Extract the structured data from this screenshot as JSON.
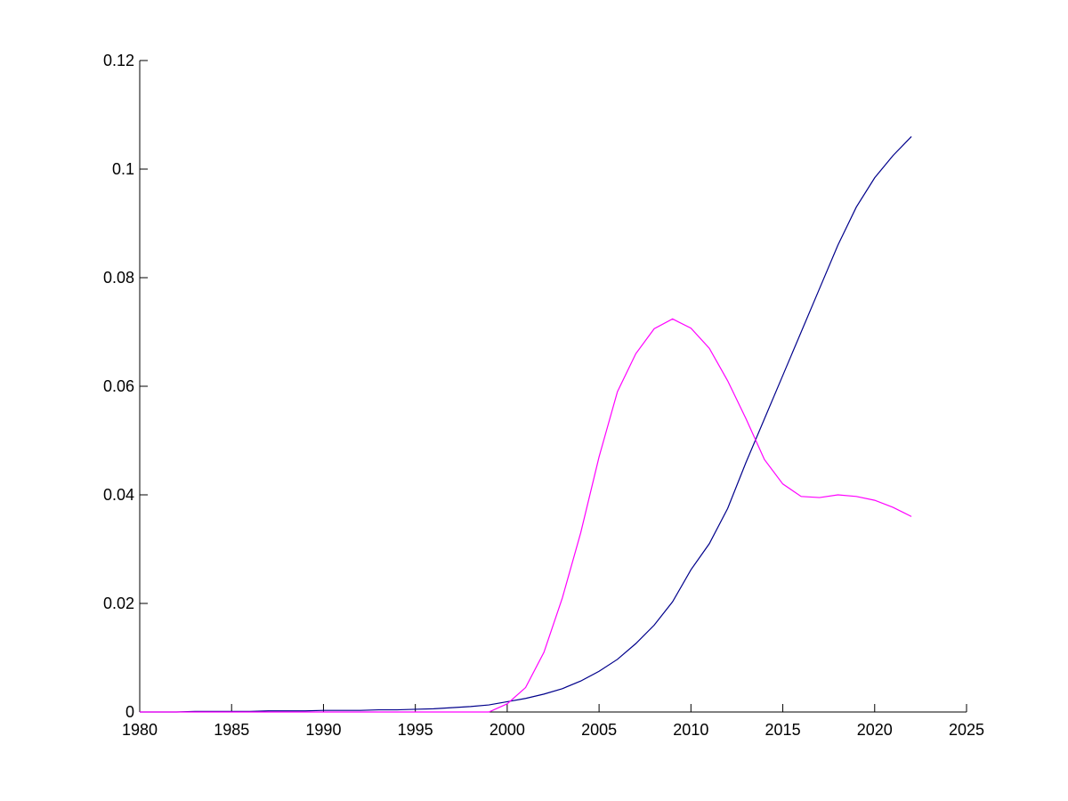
{
  "chart_data": {
    "type": "line",
    "x": [
      1980,
      1981,
      1982,
      1983,
      1984,
      1985,
      1986,
      1987,
      1988,
      1989,
      1990,
      1991,
      1992,
      1993,
      1994,
      1995,
      1996,
      1997,
      1998,
      1999,
      2000,
      2001,
      2002,
      2003,
      2004,
      2005,
      2006,
      2007,
      2008,
      2009,
      2010,
      2011,
      2012,
      2013,
      2014,
      2015,
      2016,
      2017,
      2018,
      2019,
      2020,
      2021,
      2022
    ],
    "series": [
      {
        "color": "#00008b",
        "values": [
          0,
          0,
          0,
          0.0001,
          0.0001,
          0.0001,
          0.0001,
          0.0002,
          0.0002,
          0.0002,
          0.0003,
          0.0003,
          0.0003,
          0.0004,
          0.0004,
          0.0005,
          0.0006,
          0.0008,
          0.001,
          0.0013,
          0.0019,
          0.0025,
          0.0033,
          0.0043,
          0.0057,
          0.0075,
          0.0097,
          0.0126,
          0.016,
          0.0203,
          0.0262,
          0.031,
          0.0375,
          0.046,
          0.054,
          0.062,
          0.07,
          0.078,
          0.086,
          0.093,
          0.0984,
          0.1025,
          0.106
        ]
      },
      {
        "color": "#ff00ff",
        "values": [
          0,
          0,
          0,
          0,
          0,
          0,
          0,
          0,
          0,
          0,
          0,
          0,
          0,
          0,
          0,
          0,
          0,
          0,
          0,
          0,
          0.0015,
          0.0045,
          0.011,
          0.021,
          0.033,
          0.047,
          0.059,
          0.066,
          0.0706,
          0.0724,
          0.0707,
          0.067,
          0.061,
          0.054,
          0.0465,
          0.042,
          0.0397,
          0.0395,
          0.04,
          0.0397,
          0.039,
          0.0377,
          0.036
        ]
      }
    ],
    "xlim": [
      1980,
      2025
    ],
    "xticks": [
      1980,
      1985,
      1990,
      1995,
      2000,
      2005,
      2010,
      2015,
      2020,
      2025
    ],
    "ylim": [
      0,
      0.12
    ],
    "yticks": [
      0,
      0.02,
      0.04,
      0.06,
      0.08,
      0.1,
      0.12
    ]
  }
}
